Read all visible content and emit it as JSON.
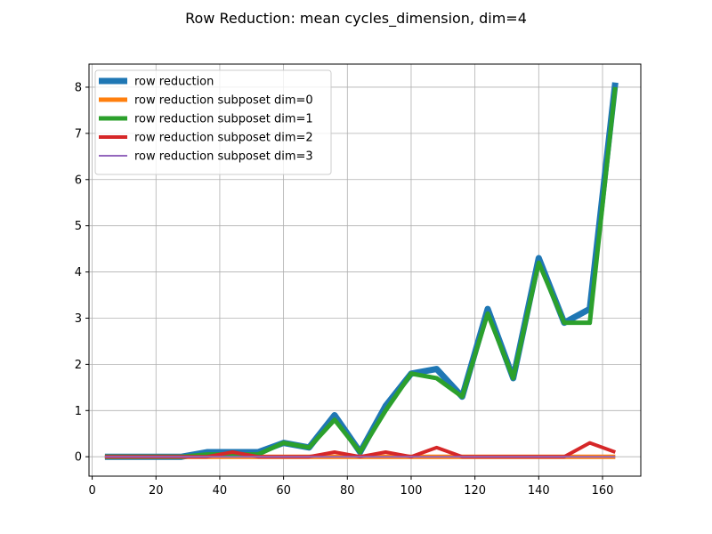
{
  "chart_data": {
    "type": "line",
    "title": "Row Reduction: mean cycles_dimension, dim=4",
    "xlabel": "",
    "ylabel": "",
    "xlim": [
      -1,
      172
    ],
    "ylim": [
      -0.42,
      8.5
    ],
    "xticks": [
      0,
      20,
      40,
      60,
      80,
      100,
      120,
      140,
      160
    ],
    "yticks": [
      0,
      1,
      2,
      3,
      4,
      5,
      6,
      7,
      8
    ],
    "grid": true,
    "legend_position": "upper-left",
    "x": [
      4,
      12,
      20,
      28,
      36,
      44,
      52,
      60,
      68,
      76,
      84,
      92,
      100,
      108,
      116,
      124,
      132,
      140,
      148,
      156,
      164
    ],
    "series": [
      {
        "name": "row reduction",
        "color": "#1f77b4",
        "values": [
          0.0,
          0.0,
          0.0,
          0.0,
          0.1,
          0.1,
          0.1,
          0.3,
          0.2,
          0.9,
          0.1,
          1.1,
          1.8,
          1.9,
          1.3,
          3.2,
          1.7,
          4.3,
          2.9,
          3.2,
          8.1
        ]
      },
      {
        "name": "row reduction subposet dim=0",
        "color": "#ff7f0e",
        "values": [
          0.0,
          0.0,
          0.0,
          0.0,
          0.0,
          0.0,
          0.0,
          0.0,
          0.0,
          0.0,
          0.0,
          0.0,
          0.0,
          0.0,
          0.0,
          0.0,
          0.0,
          0.0,
          0.0,
          0.0,
          0.0
        ]
      },
      {
        "name": "row reduction subposet dim=1",
        "color": "#2ca02c",
        "values": [
          0.0,
          0.0,
          0.0,
          0.0,
          0.05,
          0.05,
          0.05,
          0.3,
          0.2,
          0.8,
          0.1,
          1.0,
          1.8,
          1.7,
          1.3,
          3.1,
          1.7,
          4.2,
          2.9,
          2.9,
          8.0
        ]
      },
      {
        "name": "row reduction subposet dim=2",
        "color": "#d62728",
        "values": [
          0.0,
          0.0,
          0.0,
          0.0,
          0.0,
          0.1,
          0.0,
          0.0,
          0.0,
          0.1,
          0.0,
          0.1,
          0.0,
          0.2,
          0.0,
          0.0,
          0.0,
          0.0,
          0.0,
          0.3,
          0.1
        ]
      },
      {
        "name": "row reduction subposet dim=3",
        "color": "#9467bd",
        "values": [
          0.0,
          0.0,
          0.0,
          0.0,
          0.0,
          0.0,
          0.0,
          0.0,
          0.0,
          0.0,
          0.0,
          0.0,
          0.0,
          0.0,
          0.0,
          0.0,
          0.0,
          0.0,
          0.0,
          0.0,
          0.0
        ]
      }
    ]
  }
}
